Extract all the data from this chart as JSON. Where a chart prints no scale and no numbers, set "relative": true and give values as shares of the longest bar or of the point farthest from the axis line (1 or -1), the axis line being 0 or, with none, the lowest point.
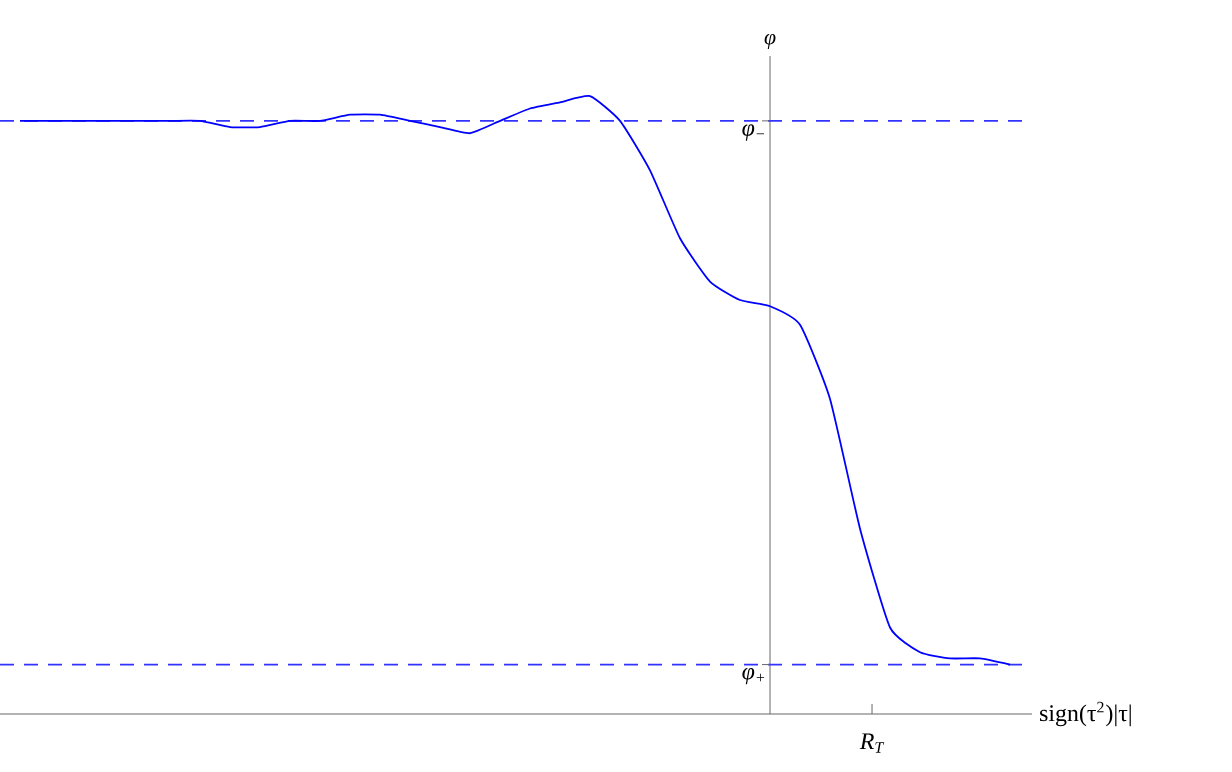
{
  "chart_data": {
    "type": "line",
    "relative": true,
    "xlabel": "sign(τ$^{2}$)|τ|",
    "ylabel": "φ",
    "categories": [
      null,
      null,
      null,
      null,
      null,
      null,
      null,
      null,
      null,
      null,
      null,
      null,
      null,
      null,
      null,
      null,
      null,
      null,
      null,
      null,
      null,
      null,
      null,
      null,
      null,
      null,
      null,
      null,
      null,
      null,
      null,
      null,
      null,
      null
    ],
    "series": [
      {
        "color": "#0000ff",
        "values": [
          0.96,
          0.96,
          0.96,
          0.96,
          0.96,
          0.96,
          0.96,
          0.95,
          0.95,
          0.96,
          0.96,
          0.97,
          0.97,
          0.96,
          0.95,
          0.94,
          0.96,
          0.98,
          0.99,
          1.0,
          0.96,
          0.88,
          0.77,
          0.7,
          0.67,
          0.66,
          0.63,
          0.51,
          0.3,
          0.14,
          0.1,
          0.09,
          0.09,
          0.08
        ]
      }
    ],
    "ref_lines": [
      {
        "axis": "y",
        "value": 0.96,
        "label": "φ$_{−}$",
        "color": "#3333ff",
        "line_style": "dashed"
      },
      {
        "axis": "y",
        "value": 0.08,
        "label": "φ$_{+}$",
        "color": "#3333ff",
        "line_style": "dashed"
      }
    ],
    "annotations": [
      "R$_{T}$"
    ]
  }
}
